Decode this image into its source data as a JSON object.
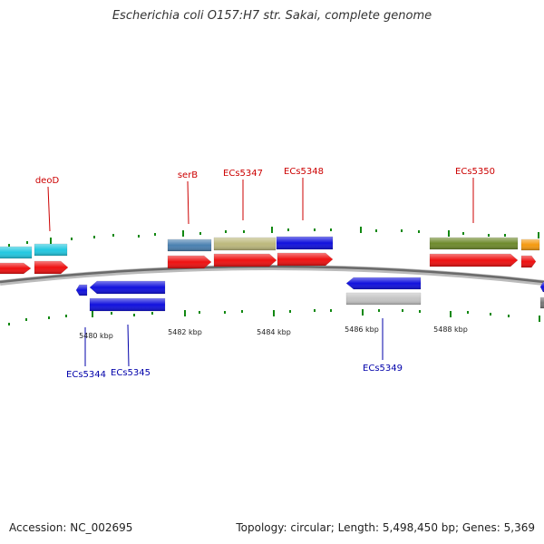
{
  "title": "Escherichia coli O157:H7 str. Sakai, complete genome",
  "footer": {
    "accession": "Accession: NC_002695",
    "summary": "Topology: circular; Length: 5,498,450 bp; Genes: 5,369"
  },
  "colors": {
    "cds_forward": "#ee1111",
    "cds_reverse": "#1111dd",
    "backbone": "#777777",
    "tick": "#118811",
    "label_forward": "#cc0000",
    "label_reverse": "#0000aa",
    "cyan": "#22c8e0",
    "steelblue": "#4a80b0",
    "khaki": "#bcb87c",
    "olive": "#6e8a2c",
    "orange": "#f59a10",
    "grey": "#c4c4c4"
  },
  "tick_labels": [
    "5480 kbp",
    "5482 kbp",
    "5484 kbp",
    "5486 kbp",
    "5488 kbp"
  ],
  "gene_labels": {
    "deoD": "deoD",
    "serB": "serB",
    "ECs5347": "ECs5347",
    "ECs5348": "ECs5348",
    "ECs5350": "ECs5350",
    "ECs5344": "ECs5344",
    "ECs5345": "ECs5345",
    "ECs5349": "ECs5349"
  }
}
